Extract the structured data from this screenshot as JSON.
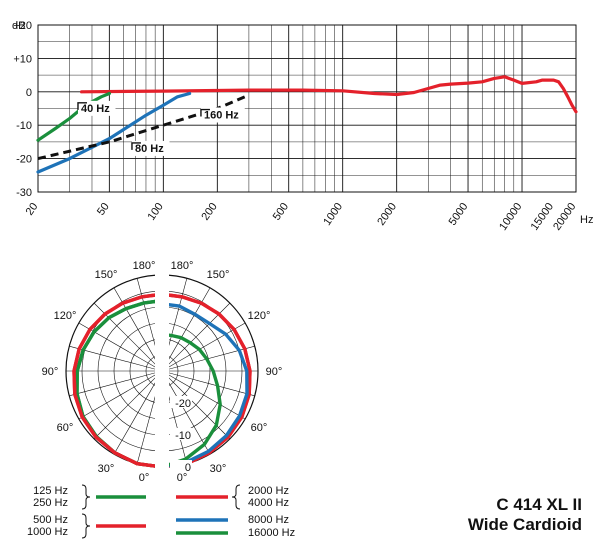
{
  "chart_data": [
    {
      "type": "line",
      "ylabel": "dB",
      "xlabel": "Hz",
      "x_scale": "log",
      "xlim": [
        20,
        20000
      ],
      "ylim": [
        -30,
        20
      ],
      "grid": true,
      "x_ticks": [
        "20",
        "50",
        "100",
        "200",
        "500",
        "1000",
        "2000",
        "5000",
        "10000",
        "15000",
        "20000"
      ],
      "y_ticks": [
        "+20",
        "+10",
        "0",
        "-10",
        "-20",
        "-30"
      ],
      "series": [
        {
          "name": "",
          "color": "#e4212b",
          "x": [
            35,
            100,
            300,
            600,
            1000,
            1500,
            2000,
            2500,
            3000,
            3500,
            4000,
            5000,
            6000,
            7000,
            8000,
            9000,
            10000,
            12000,
            13000,
            14000,
            15000,
            16000,
            17000,
            18000,
            19000,
            20000
          ],
          "y": [
            0,
            0.2,
            0.5,
            0.5,
            0.3,
            -0.5,
            -0.8,
            -0.2,
            1.0,
            2.0,
            2.3,
            2.6,
            3.0,
            4.0,
            4.5,
            3.5,
            2.5,
            3.0,
            3.5,
            3.5,
            3.5,
            3.0,
            1.0,
            -1.5,
            -4.0,
            -6.0
          ]
        },
        {
          "name": "",
          "color": "#1a8f3c",
          "x": [
            20,
            25,
            30,
            35,
            40,
            45,
            50
          ],
          "y": [
            -14.5,
            -11,
            -8,
            -5,
            -3,
            -1.5,
            -0.5
          ]
        },
        {
          "name": "",
          "color": "#1e73b8",
          "x": [
            20,
            30,
            50,
            80,
            100,
            120,
            140
          ],
          "y": [
            -24,
            -20,
            -14,
            -7,
            -4,
            -1.5,
            -0.5
          ]
        },
        {
          "name": "",
          "color": "#111111",
          "dashed": true,
          "x": [
            20,
            50,
            100,
            200,
            300
          ],
          "y": [
            -20,
            -15,
            -10,
            -5,
            -1
          ]
        }
      ],
      "annotations": [
        {
          "text": "40 Hz",
          "x": 40,
          "y": -6
        },
        {
          "text": "80 Hz",
          "x": 80,
          "y": -18
        },
        {
          "text": "160 Hz",
          "x": 160,
          "y": -8
        }
      ]
    },
    {
      "type": "polar",
      "angle_labels": [
        "180°",
        "150°",
        "120°",
        "90°",
        "60°",
        "30°",
        "0°"
      ],
      "radial_labels": [
        "-20",
        "-10",
        "0"
      ],
      "radial_unit": "dB",
      "left": [
        {
          "label": "125 Hz",
          "color": "#1a8f3c",
          "values": [
            0,
            0,
            -0.5,
            -1,
            -1.5,
            -2.5,
            -3.5,
            -4.5,
            -5.5,
            -6.5,
            -7.5,
            -8
          ]
        },
        {
          "label": "250 Hz",
          "color": "#1a8f3c",
          "values": [
            0,
            0,
            -0.5,
            -1,
            -1.5,
            -2.5,
            -3.5,
            -4.5,
            -5.5,
            -6.5,
            -7.5,
            -8
          ]
        },
        {
          "label": "500 Hz",
          "color": "#e4212b",
          "values": [
            0,
            0,
            -0.5,
            -0.8,
            -1.2,
            -1.8,
            -2.5,
            -3.2,
            -4,
            -4.8,
            -5.5,
            -6
          ]
        },
        {
          "label": "1000 Hz",
          "color": "#e4212b",
          "values": [
            0,
            0,
            -0.5,
            -0.8,
            -1.2,
            -1.8,
            -2.5,
            -3.2,
            -4,
            -4.8,
            -5.5,
            -6
          ]
        }
      ],
      "right": [
        {
          "label": "2000 Hz",
          "color": "#e4212b",
          "values": [
            0,
            0,
            -0.5,
            -0.8,
            -1.2,
            -1.8,
            -2.5,
            -3.2,
            -4,
            -4.8,
            -5.5,
            -6
          ]
        },
        {
          "label": "4000 Hz",
          "color": "#e4212b",
          "values": [
            0,
            0,
            -0.5,
            -0.8,
            -1.2,
            -1.8,
            -2.5,
            -3.2,
            -4,
            -4.8,
            -5.5,
            -6
          ]
        },
        {
          "label": "8000 Hz",
          "color": "#1e73b8",
          "values": [
            0,
            -0.5,
            -1,
            -1.5,
            -2,
            -2.5,
            -3.5,
            -5,
            -7,
            -9,
            -9.5,
            -9
          ]
        },
        {
          "label": "16000 Hz",
          "color": "#1a8f3c",
          "values": [
            0,
            -1.5,
            -3.5,
            -6,
            -9,
            -12,
            -14,
            -15.5,
            -16.5,
            -17.5,
            -18,
            -18.5
          ]
        }
      ]
    }
  ],
  "legend_left": [
    {
      "labels": [
        "125 Hz",
        "250 Hz"
      ],
      "color": "#1a8f3c"
    },
    {
      "labels": [
        "500 Hz",
        "1000 Hz"
      ],
      "color": "#e4212b"
    }
  ],
  "legend_right": [
    {
      "labels": [
        "2000 Hz",
        "4000 Hz"
      ],
      "color": "#e4212b"
    },
    {
      "labels": [
        "8000 Hz"
      ],
      "color": "#1e73b8"
    },
    {
      "labels": [
        "16000 Hz"
      ],
      "color": "#1a8f3c"
    }
  ],
  "product": {
    "model": "C 414 XL II",
    "pattern": "Wide Cardioid"
  }
}
